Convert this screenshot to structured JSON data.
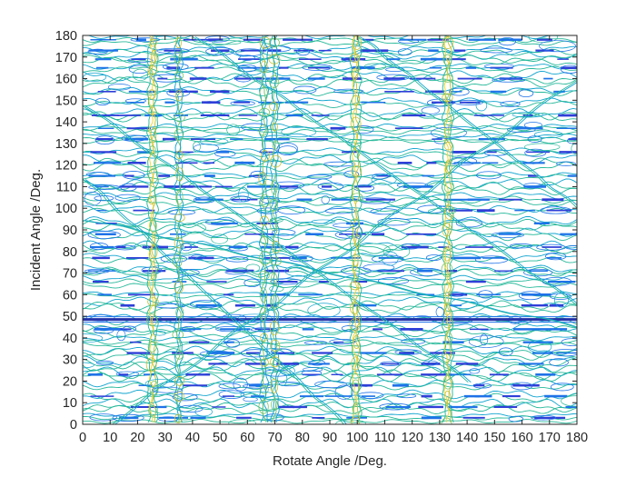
{
  "chart_data": {
    "type": "contour",
    "title": "",
    "xlabel": "Rotate Angle /Deg.",
    "ylabel": "Incident Angle /Deg.",
    "xlim": [
      0,
      180
    ],
    "ylim": [
      0,
      180
    ],
    "xticks": [
      0,
      10,
      20,
      30,
      40,
      50,
      60,
      70,
      80,
      90,
      100,
      110,
      120,
      130,
      140,
      150,
      160,
      170,
      180
    ],
    "yticks": [
      0,
      10,
      20,
      30,
      40,
      50,
      60,
      70,
      80,
      90,
      100,
      110,
      120,
      130,
      140,
      150,
      160,
      170,
      180
    ],
    "xtick_labels": [
      "0",
      "10",
      "20",
      "30",
      "40",
      "50",
      "60",
      "70",
      "80",
      "90",
      "100",
      "110",
      "120",
      "130",
      "140",
      "150",
      "160",
      "170",
      "180"
    ],
    "ytick_labels": [
      "0",
      "10",
      "20",
      "30",
      "40",
      "50",
      "60",
      "70",
      "80",
      "90",
      "100",
      "110",
      "120",
      "130",
      "140",
      "150",
      "160",
      "170",
      "180"
    ],
    "grid": false,
    "legend": "none",
    "colormap": "parula",
    "level_colors": [
      "#2f3fd8",
      "#1f72e8",
      "#10a4cf",
      "#27b99a",
      "#79c56a",
      "#c8c13a",
      "#f5d92a"
    ],
    "horizontal_band_y": [
      3,
      8,
      13,
      18,
      23,
      28,
      33,
      38,
      44,
      48.5,
      55,
      60,
      66,
      71,
      77,
      82,
      88,
      93,
      99,
      104,
      110,
      115,
      121,
      126,
      132,
      137,
      143,
      149,
      154,
      160,
      165,
      169,
      173,
      178
    ],
    "strong_band_y": 48.5,
    "vertical_ridge_x": [
      25.5,
      35,
      66,
      70,
      99.5,
      133
    ],
    "diagonal_ridges": [
      {
        "from": [
          0,
          114
        ],
        "to": [
          95,
          0
        ]
      },
      {
        "from": [
          0,
          148
        ],
        "to": [
          140,
          20
        ]
      },
      {
        "from": [
          40,
          180
        ],
        "to": [
          180,
          55
        ]
      },
      {
        "from": [
          0,
          95
        ],
        "to": [
          180,
          45
        ]
      },
      {
        "from": [
          100,
          180
        ],
        "to": [
          180,
          100
        ]
      },
      {
        "from": [
          10,
          0
        ],
        "to": [
          180,
          160
        ]
      }
    ]
  }
}
